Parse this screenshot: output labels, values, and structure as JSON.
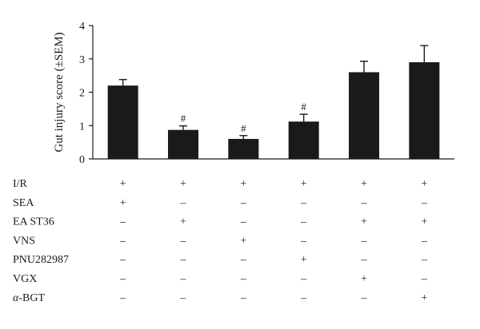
{
  "chart_data": {
    "type": "bar",
    "ylabel": "Gut injury score (±SEM)",
    "ylim": [
      0,
      4
    ],
    "yticks": [
      "0",
      "1",
      "2",
      "3",
      "4"
    ],
    "values": [
      2.2,
      0.87,
      0.6,
      1.12,
      2.6,
      2.9
    ],
    "errors": [
      0.18,
      0.12,
      0.1,
      0.22,
      0.33,
      0.5
    ],
    "annotations": [
      "",
      "#",
      "#",
      "#",
      "",
      ""
    ],
    "bar_color": "#1a1a1a",
    "grid": false,
    "treatments": [
      {
        "label": "I/R",
        "signs": [
          "+",
          "+",
          "+",
          "+",
          "+",
          "+"
        ]
      },
      {
        "label": "SEA",
        "signs": [
          "+",
          "–",
          "–",
          "–",
          "–",
          "–"
        ]
      },
      {
        "label": "EA ST36",
        "signs": [
          "–",
          "+",
          "–",
          "–",
          "+",
          "+"
        ]
      },
      {
        "label": "VNS",
        "signs": [
          "–",
          "–",
          "+",
          "–",
          "–",
          "–"
        ]
      },
      {
        "label": "PNU282987",
        "signs": [
          "–",
          "–",
          "–",
          "+",
          "–",
          "–"
        ]
      },
      {
        "label": "VGX",
        "signs": [
          "–",
          "–",
          "–",
          "–",
          "+",
          "–"
        ]
      },
      {
        "label": "BGT",
        "prefix": "α-",
        "signs": [
          "–",
          "–",
          "–",
          "–",
          "–",
          "+"
        ]
      }
    ]
  }
}
